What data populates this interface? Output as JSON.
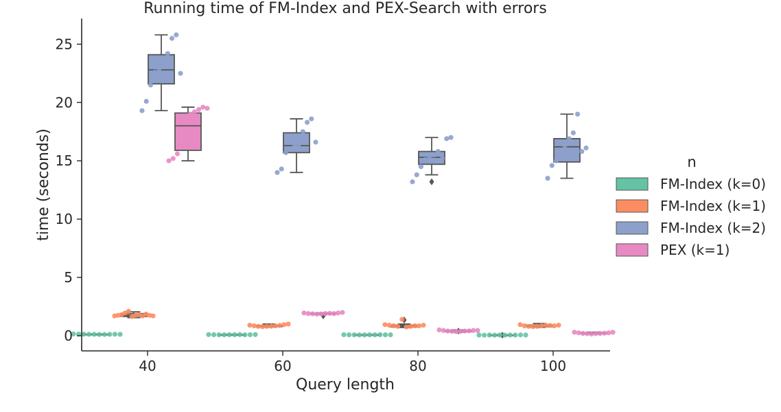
{
  "chart_data": {
    "type": "box",
    "title": "Running time of FM-Index and PEX-Search with errors",
    "xlabel": "Query length",
    "ylabel": "time (seconds)",
    "categories": [
      "40",
      "60",
      "80",
      "100"
    ],
    "yticks": [
      0,
      5,
      10,
      15,
      20,
      25
    ],
    "ylim": [
      -1.3,
      27.2
    ],
    "grid": false,
    "legend": {
      "title": "n",
      "placement": "right"
    },
    "series": [
      {
        "name": "FM-Index (k=0)",
        "color": "#66c2a5",
        "boxes": [
          {
            "min": 0.1,
            "q1": 0.11,
            "median": 0.12,
            "q3": 0.13,
            "max": 0.15,
            "outliers": []
          },
          {
            "min": 0.07,
            "q1": 0.08,
            "median": 0.09,
            "q3": 0.1,
            "max": 0.11,
            "outliers": []
          },
          {
            "min": 0.06,
            "q1": 0.07,
            "median": 0.08,
            "q3": 0.09,
            "max": 0.1,
            "outliers": []
          },
          {
            "min": 0.04,
            "q1": 0.05,
            "median": 0.06,
            "q3": 0.07,
            "max": 0.08,
            "outliers": [
              0.05
            ]
          }
        ],
        "points": [
          [
            0.15,
            0.14,
            0.13,
            0.12,
            0.12,
            0.11,
            0.11,
            0.12,
            0.13,
            0.12
          ],
          [
            0.1,
            0.09,
            0.08,
            0.08,
            0.09,
            0.09,
            0.1,
            0.08,
            0.09,
            0.1
          ],
          [
            0.09,
            0.08,
            0.08,
            0.07,
            0.07,
            0.08,
            0.08,
            0.09,
            0.08,
            0.08
          ],
          [
            0.06,
            0.05,
            0.06,
            0.05,
            0.06,
            0.05,
            0.06,
            0.06,
            0.07,
            0.06
          ]
        ]
      },
      {
        "name": "FM-Index (k=1)",
        "color": "#fc8d62",
        "boxes": [
          {
            "min": 1.55,
            "q1": 1.65,
            "median": 1.75,
            "q3": 1.9,
            "max": 2.05,
            "outliers": []
          },
          {
            "min": 0.75,
            "q1": 0.78,
            "median": 0.82,
            "q3": 0.88,
            "max": 1.0,
            "outliers": []
          },
          {
            "min": 0.7,
            "q1": 0.75,
            "median": 0.82,
            "q3": 0.92,
            "max": 1.0,
            "outliers": [
              1.35
            ]
          },
          {
            "min": 0.72,
            "q1": 0.77,
            "median": 0.82,
            "q3": 0.92,
            "max": 1.05,
            "outliers": []
          }
        ],
        "points": [
          [
            1.7,
            1.75,
            1.8,
            1.95,
            2.1,
            1.65,
            1.75,
            1.8,
            1.7,
            1.85,
            1.75,
            1.7
          ],
          [
            0.9,
            0.85,
            0.8,
            0.78,
            0.8,
            0.82,
            0.85,
            0.88,
            0.95,
            1.0
          ],
          [
            0.95,
            0.9,
            0.85,
            0.8,
            1.4,
            0.75,
            0.8,
            0.85,
            0.85,
            0.9
          ],
          [
            0.95,
            0.85,
            0.8,
            0.78,
            0.8,
            0.85,
            0.9,
            0.88,
            0.85,
            0.9
          ]
        ]
      },
      {
        "name": "FM-Index (k=2)",
        "color": "#8da0cb",
        "boxes": [
          {
            "min": 19.3,
            "q1": 21.6,
            "median": 22.8,
            "q3": 24.1,
            "max": 25.8,
            "outliers": []
          },
          {
            "min": 14.0,
            "q1": 15.7,
            "median": 16.3,
            "q3": 17.4,
            "max": 18.6,
            "outliers": []
          },
          {
            "min": 13.8,
            "q1": 14.7,
            "median": 15.3,
            "q3": 15.8,
            "max": 17.0,
            "outliers": [
              13.2
            ]
          },
          {
            "min": 13.5,
            "q1": 14.9,
            "median": 16.2,
            "q3": 16.9,
            "max": 19.0,
            "outliers": []
          }
        ],
        "points": [
          [
            19.3,
            20.1,
            21.5,
            22.6,
            22.9,
            23.8,
            24.2,
            25.5,
            25.8,
            22.5
          ],
          [
            14.0,
            14.3,
            15.7,
            16.0,
            16.2,
            16.4,
            17.5,
            18.3,
            18.6,
            16.6
          ],
          [
            13.2,
            13.8,
            14.5,
            15.1,
            15.3,
            15.5,
            15.8,
            15.2,
            16.9,
            17.0
          ],
          [
            13.5,
            14.6,
            15.0,
            15.5,
            16.3,
            16.9,
            17.4,
            19.0,
            15.8,
            16.1
          ]
        ]
      },
      {
        "name": "PEX (k=1)",
        "color": "#e78ac3",
        "boxes": [
          {
            "min": 15.0,
            "q1": 15.9,
            "median": 18.0,
            "q3": 19.1,
            "max": 19.6,
            "outliers": []
          },
          {
            "min": 1.85,
            "q1": 1.87,
            "median": 1.9,
            "q3": 1.92,
            "max": 1.95,
            "outliers": [
              1.7
            ]
          },
          {
            "min": 0.3,
            "q1": 0.35,
            "median": 0.4,
            "q3": 0.45,
            "max": 0.5,
            "outliers": [
              0.4
            ]
          },
          {
            "min": 0.15,
            "q1": 0.18,
            "median": 0.2,
            "q3": 0.25,
            "max": 0.3,
            "outliers": []
          }
        ],
        "points": [
          [
            15.0,
            15.2,
            15.6,
            17.7,
            18.3,
            19.0,
            19.2,
            19.4,
            19.6,
            19.5
          ],
          [
            1.95,
            1.9,
            1.88,
            1.85,
            1.87,
            1.9,
            1.92,
            1.9,
            1.95,
            2.0
          ],
          [
            0.5,
            0.45,
            0.4,
            0.38,
            0.35,
            0.38,
            0.4,
            0.42,
            0.45,
            0.45
          ],
          [
            0.3,
            0.25,
            0.2,
            0.18,
            0.15,
            0.18,
            0.2,
            0.22,
            0.25,
            0.3
          ]
        ]
      }
    ]
  }
}
